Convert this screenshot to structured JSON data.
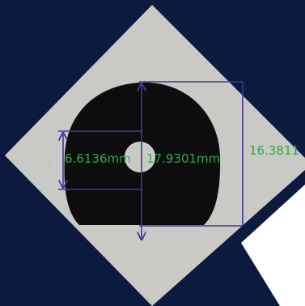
{
  "colors": {
    "background": "#0c1a40",
    "photo_panel": "#c9cac6",
    "gasket": "#0d0d0d",
    "dimension_line": "#3c3a9c",
    "dimension_text": "#2ea84a",
    "corner_tile": "#ffffff"
  },
  "measurements": {
    "inner_diameter": "6.6136mm",
    "outer_diameter": "17.9301mm",
    "height": "16.3811"
  }
}
